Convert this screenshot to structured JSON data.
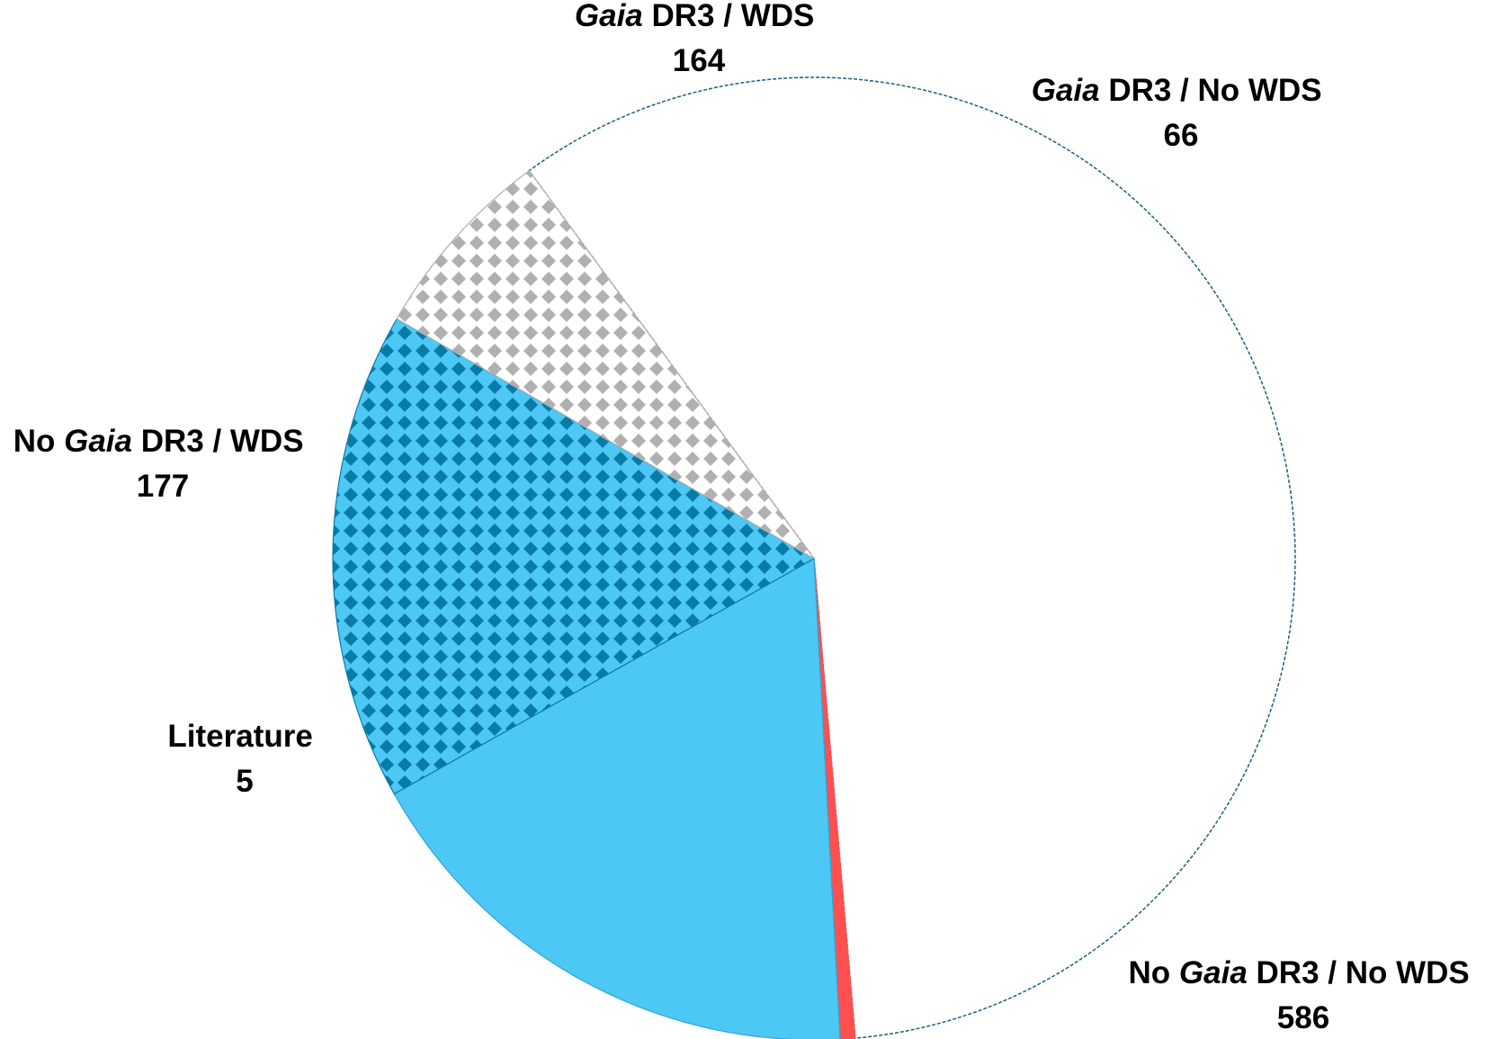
{
  "chart_data": {
    "type": "pie",
    "title": "",
    "start_angle_deg": -36.3,
    "direction": "clockwise",
    "slices": [
      {
        "id": "no-gaia-no-wds",
        "name": "No Gaia DR3 / No WDS",
        "name_parts": {
          "pre": "No ",
          "italic": "Gaia",
          "post": " DR3 / No WDS"
        },
        "value": 586,
        "value_label": "586",
        "color": "#ffffff",
        "pattern": "none",
        "outline": "#1f5f7a"
      },
      {
        "id": "literature",
        "name": "Literature",
        "name_parts": {
          "pre": "Literature",
          "italic": "",
          "post": ""
        },
        "value": 5,
        "value_label": "5",
        "color": "#ff5050",
        "pattern": "none",
        "outline": "#ff5050"
      },
      {
        "id": "no-gaia-wds",
        "name": "No Gaia DR3 / WDS",
        "name_parts": {
          "pre": "No ",
          "italic": "Gaia",
          "post": " DR3 / WDS"
        },
        "value": 177,
        "value_label": "177",
        "color": "#4dc8f4",
        "pattern": "none",
        "outline": "#2aa5d6"
      },
      {
        "id": "gaia-wds",
        "name": "Gaia DR3 / WDS",
        "name_parts": {
          "pre": "",
          "italic": "Gaia",
          "post": " DR3 / WDS"
        },
        "value": 164,
        "value_label": "164",
        "color": "#4dc8f4",
        "pattern": "diamonds",
        "pattern_color": "#0a7aa6",
        "outline": "#0a7aa6"
      },
      {
        "id": "gaia-no-wds",
        "name": "Gaia DR3 / No WDS",
        "name_parts": {
          "pre": "",
          "italic": "Gaia",
          "post": " DR3 / No WDS"
        },
        "value": 66,
        "value_label": "66",
        "color": "#ffffff",
        "pattern": "diamonds",
        "pattern_color": "#b0b0b0",
        "outline": "#b0b0b0"
      }
    ],
    "legend": "none"
  }
}
